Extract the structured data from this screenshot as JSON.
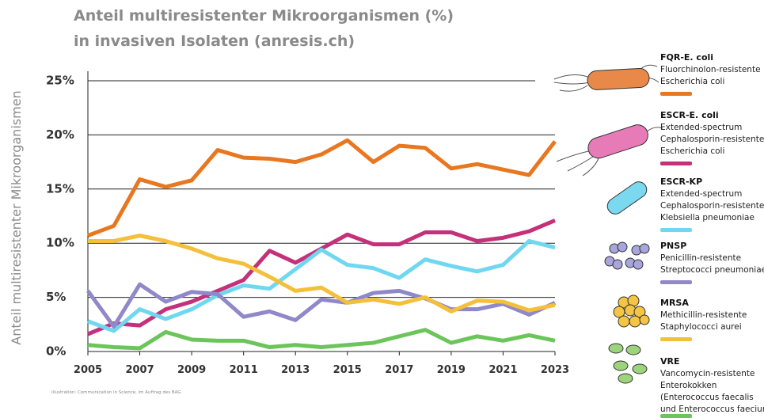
{
  "chart_data": {
    "type": "line",
    "title": "Anteil multiresistenter Mikroorganismen (%)",
    "subtitle": "in invasiven Isolaten (anresis.ch)",
    "y_label": "Anteil multiresistenter Mikroorganismen",
    "credit": "Illustration: Communication in Science, im Auftrag des BAG",
    "x": [
      2005,
      2006,
      2007,
      2008,
      2009,
      2010,
      2011,
      2012,
      2013,
      2014,
      2015,
      2016,
      2017,
      2018,
      2019,
      2020,
      2021,
      2022,
      2023
    ],
    "xlim": [
      2005,
      2023
    ],
    "xticks": [
      2005,
      2007,
      2009,
      2011,
      2013,
      2015,
      2017,
      2019,
      2021,
      2023
    ],
    "ylim": [
      0,
      25
    ],
    "yticks": [
      {
        "value": 0,
        "label": "0%"
      },
      {
        "value": 5,
        "label": "5%"
      },
      {
        "value": 10,
        "label": "10%"
      },
      {
        "value": 15,
        "label": "15%"
      },
      {
        "value": 20,
        "label": "20%"
      },
      {
        "value": 25,
        "label": "25%"
      }
    ],
    "grid": true,
    "series": [
      {
        "name": "FQR-E. coli",
        "description": [
          "Fluorchinolon-resistente",
          "Escherichia coli"
        ],
        "color": "#e8771f",
        "values": [
          10.7,
          11.6,
          15.9,
          15.2,
          15.8,
          18.6,
          17.9,
          17.8,
          17.5,
          18.2,
          19.5,
          17.5,
          19.0,
          18.8,
          16.9,
          17.3,
          16.8,
          16.3,
          19.4
        ]
      },
      {
        "name": "ESCR-E. coli",
        "description": [
          "Extended-spectrum",
          "Cephalosporin-resistente",
          "Escherichia coli"
        ],
        "color": "#c4317a",
        "values": [
          1.6,
          2.6,
          2.4,
          3.9,
          4.6,
          5.6,
          6.6,
          9.3,
          8.2,
          9.5,
          10.8,
          9.9,
          9.9,
          11.0,
          11.0,
          10.2,
          10.5,
          11.1,
          12.1
        ]
      },
      {
        "name": "ESCR-KP",
        "description": [
          "Extended-spectrum",
          "Cephalosporin-resistente",
          "Klebsiella pneumoniae"
        ],
        "color": "#6fd7f0",
        "values": [
          2.8,
          1.9,
          3.9,
          3.0,
          3.9,
          5.2,
          6.1,
          5.8,
          7.6,
          9.4,
          8.0,
          7.7,
          6.8,
          8.5,
          7.9,
          7.4,
          8.0,
          10.2,
          9.6
        ]
      },
      {
        "name": "PNSP",
        "description": [
          "Penicillin-resistente",
          "Streptococci pneumoniae"
        ],
        "color": "#8f88c9",
        "values": [
          5.6,
          2.3,
          6.2,
          4.6,
          5.5,
          5.3,
          3.2,
          3.7,
          2.9,
          4.8,
          4.5,
          5.4,
          5.6,
          4.9,
          3.9,
          3.9,
          4.4,
          3.4,
          4.5
        ]
      },
      {
        "name": "MRSA",
        "description": [
          "Methicillin-resistente",
          "Staphylococci aurei"
        ],
        "color": "#f4bf3a",
        "values": [
          10.2,
          10.2,
          10.7,
          10.2,
          9.5,
          8.6,
          8.1,
          6.9,
          5.6,
          5.9,
          4.5,
          4.8,
          4.4,
          5.0,
          3.7,
          4.7,
          4.6,
          3.8,
          4.3
        ]
      },
      {
        "name": "VRE",
        "description": [
          "Vancomycin-resistente",
          "Enterokokken",
          "(Enterococcus faecalis",
          "und Enterococcus faecium)"
        ],
        "color": "#6cc55a",
        "values": [
          0.6,
          0.4,
          0.3,
          1.8,
          1.1,
          1.0,
          1.0,
          0.4,
          0.6,
          0.4,
          0.6,
          0.8,
          1.4,
          2.0,
          0.8,
          1.4,
          1.0,
          1.5,
          1.0
        ]
      }
    ]
  }
}
